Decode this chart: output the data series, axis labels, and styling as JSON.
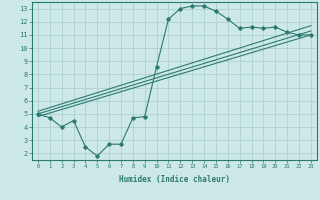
{
  "xlabel": "Humidex (Indice chaleur)",
  "ylabel": "",
  "bg_color": "#cce8e8",
  "line_color": "#2d7a6e",
  "grid_color": "#aacccc",
  "xlim": [
    -0.5,
    23.5
  ],
  "ylim": [
    1.5,
    13.5
  ],
  "xticks": [
    0,
    1,
    2,
    3,
    4,
    5,
    6,
    7,
    8,
    9,
    10,
    11,
    12,
    13,
    14,
    15,
    16,
    17,
    18,
    19,
    20,
    21,
    22,
    23
  ],
  "yticks": [
    2,
    3,
    4,
    5,
    6,
    7,
    8,
    9,
    10,
    11,
    12,
    13
  ],
  "main_x": [
    0,
    1,
    2,
    3,
    4,
    5,
    6,
    7,
    8,
    9,
    10,
    11,
    12,
    13,
    14,
    15,
    16,
    17,
    18,
    19,
    20,
    21,
    22,
    23
  ],
  "main_y": [
    5.0,
    4.7,
    4.0,
    4.5,
    2.5,
    1.8,
    2.7,
    2.7,
    4.7,
    4.8,
    8.6,
    12.2,
    13.0,
    13.2,
    13.2,
    12.8,
    12.2,
    11.5,
    11.6,
    11.5,
    11.6,
    11.2,
    11.0,
    11.0
  ],
  "trend1_x": [
    0,
    23
  ],
  "trend1_y": [
    4.8,
    11.0
  ],
  "trend2_x": [
    0,
    23
  ],
  "trend2_y": [
    5.0,
    11.3
  ],
  "trend3_x": [
    0,
    23
  ],
  "trend3_y": [
    5.2,
    11.7
  ]
}
